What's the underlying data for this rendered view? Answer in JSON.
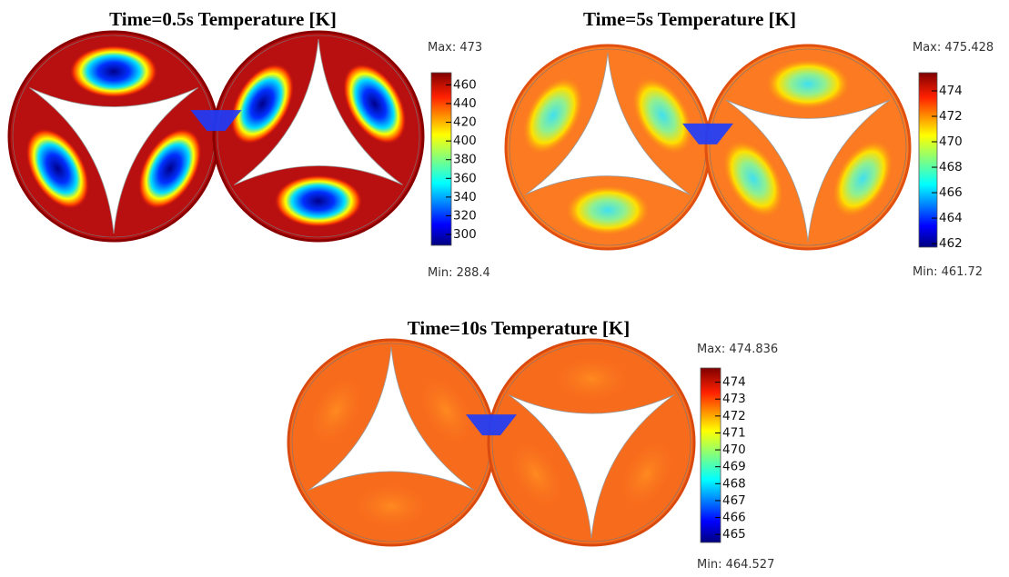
{
  "panels": [
    {
      "title": "Time=0.5s  Temperature [K]",
      "max_label": "Max: 473",
      "min_label": "Min: 288.4",
      "colorbar": {
        "clim": [
          288.4,
          473
        ],
        "ticks": [
          300,
          320,
          340,
          360,
          380,
          400,
          420,
          440,
          460
        ]
      }
    },
    {
      "title": "Time=5s  Temperature [K]",
      "max_label": "Max: 475.428",
      "min_label": "Min: 461.72",
      "colorbar": {
        "clim": [
          461.72,
          475.428
        ],
        "ticks": [
          462,
          464,
          466,
          468,
          470,
          472,
          474
        ]
      }
    },
    {
      "title": "Time=10s  Temperature [K]",
      "max_label": "Max: 474.836",
      "min_label": "Min: 464.527",
      "colorbar": {
        "clim": [
          464.527,
          474.836
        ],
        "ticks": [
          465,
          466,
          467,
          468,
          469,
          470,
          471,
          472,
          473,
          474
        ]
      }
    }
  ]
}
